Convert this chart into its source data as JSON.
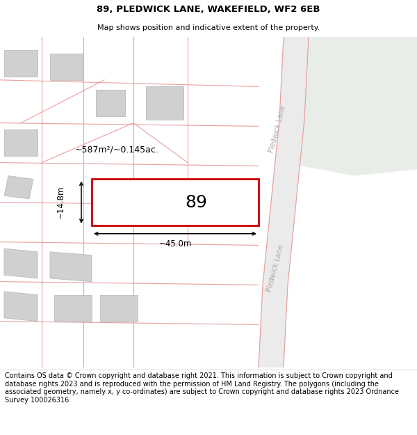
{
  "title": "89, PLEDWICK LANE, WAKEFIELD, WF2 6EB",
  "subtitle": "Map shows position and indicative extent of the property.",
  "footer": "Contains OS data © Crown copyright and database right 2021. This information is subject to Crown copyright and database rights 2023 and is reproduced with the permission of HM Land Registry. The polygons (including the associated geometry, namely x, y co-ordinates) are subject to Crown copyright and database rights 2023 Ordnance Survey 100026316.",
  "title_fontsize": 9.5,
  "subtitle_fontsize": 8,
  "footer_fontsize": 7,
  "map_bg": "#f5f3f3",
  "green_area_color": "#e8ede8",
  "plot_outline_color": "#cc0000",
  "building_color": "#d0d0d0",
  "building_edge_color": "#bbbbbb",
  "road_line_color": "#e8a0a0",
  "label_89_fontsize": 18,
  "area_label": "~587m²/~0.145ac.",
  "width_label": "~45.0m",
  "height_label": "~14.8m",
  "street_label": "Pledwick Lane"
}
